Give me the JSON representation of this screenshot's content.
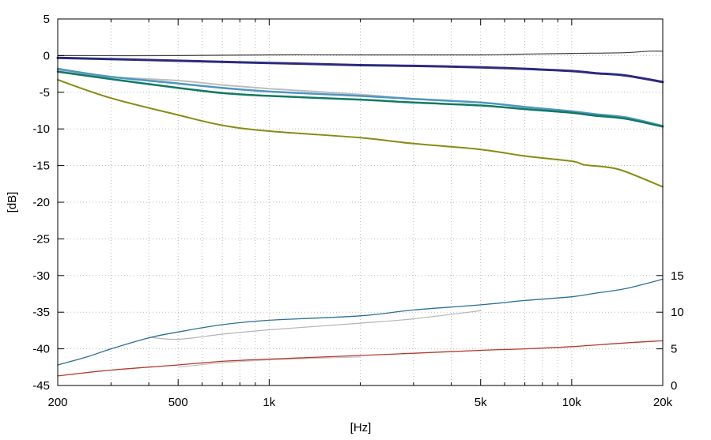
{
  "chart_data": {
    "type": "line",
    "title": "",
    "xlabel": "[Hz]",
    "ylabel": "[dB]",
    "xscale": "log",
    "xlim": [
      200,
      20000
    ],
    "ylim": [
      -45,
      5
    ],
    "y2lim": [
      0,
      50
    ],
    "grid": true,
    "x_major_ticks": [
      200,
      500,
      1000,
      5000,
      10000,
      20000
    ],
    "x_tick_labels": [
      "200",
      "500",
      "1k",
      "5k",
      "10k",
      "20k"
    ],
    "x_minor_ticks": [
      300,
      400,
      600,
      700,
      800,
      900,
      2000,
      3000,
      4000,
      6000,
      7000,
      8000,
      9000
    ],
    "y_ticks": [
      5,
      0,
      -5,
      -10,
      -15,
      -20,
      -25,
      -30,
      -35,
      -40,
      -45
    ],
    "y_tick_labels": [
      "5",
      "0",
      "-5",
      "-10",
      "-15",
      "-20",
      "-25",
      "-30",
      "-35",
      "-40",
      "-45"
    ],
    "y2_ticks": [
      15,
      10,
      5,
      0
    ],
    "y2_tick_labels": [
      "15",
      "10",
      "5",
      "0"
    ],
    "series": [
      {
        "name": "dark gray (left axis)",
        "color": "#3c3c3c",
        "width": 1.2,
        "axis": "left",
        "x": [
          200,
          500,
          1000,
          2000,
          5000,
          7000,
          10000,
          15000,
          18000,
          20000
        ],
        "y": [
          0.0,
          0.0,
          0.1,
          0.1,
          0.1,
          0.2,
          0.3,
          0.4,
          0.6,
          0.6
        ]
      },
      {
        "name": "navy (left axis)",
        "color": "#2a2a80",
        "width": 3,
        "axis": "left",
        "x": [
          200,
          500,
          1000,
          2000,
          3000,
          5000,
          7000,
          10000,
          12000,
          15000,
          20000
        ],
        "y": [
          -0.3,
          -0.7,
          -1.0,
          -1.3,
          -1.4,
          -1.6,
          -1.8,
          -2.1,
          -2.4,
          -2.7,
          -3.6
        ]
      },
      {
        "name": "light gray (left axis)",
        "color": "#bdbdbd",
        "width": 2,
        "axis": "left",
        "x": [
          200,
          300,
          500,
          700,
          1000,
          2000,
          3000,
          5000,
          7000,
          10000,
          12000,
          15000,
          20000
        ],
        "y": [
          -2.0,
          -2.9,
          -3.4,
          -4.0,
          -4.5,
          -5.3,
          -5.9,
          -6.4,
          -7.0,
          -7.7,
          -8.1,
          -8.4,
          -9.7
        ]
      },
      {
        "name": "steel blue (left axis)",
        "color": "#4f95c0",
        "width": 2.5,
        "axis": "left",
        "x": [
          200,
          300,
          500,
          700,
          1000,
          2000,
          3000,
          5000,
          7000,
          10000,
          12000,
          15000,
          20000
        ],
        "y": [
          -1.8,
          -2.9,
          -3.8,
          -4.4,
          -4.9,
          -5.5,
          -5.9,
          -6.4,
          -7.0,
          -7.6,
          -8.0,
          -8.4,
          -9.6
        ]
      },
      {
        "name": "teal (left axis)",
        "color": "#0f7a62",
        "width": 2.5,
        "axis": "left",
        "x": [
          200,
          300,
          500,
          700,
          1000,
          2000,
          3000,
          5000,
          7000,
          10000,
          12000,
          15000,
          20000
        ],
        "y": [
          -2.2,
          -3.2,
          -4.4,
          -5.1,
          -5.5,
          -6.0,
          -6.4,
          -6.8,
          -7.3,
          -7.8,
          -8.2,
          -8.6,
          -9.7
        ]
      },
      {
        "name": "olive (left axis)",
        "color": "#8a8a12",
        "width": 2,
        "axis": "left",
        "x": [
          200,
          300,
          500,
          700,
          1000,
          2000,
          3000,
          5000,
          7000,
          10000,
          11000,
          13000,
          15000,
          20000
        ],
        "y": [
          -3.3,
          -5.8,
          -8.1,
          -9.5,
          -10.3,
          -11.2,
          -12.0,
          -12.8,
          -13.7,
          -14.4,
          -14.9,
          -15.2,
          -15.8,
          -17.9
        ]
      },
      {
        "name": "light gray secondary (right axis)",
        "color": "#b4b4b4",
        "width": 1.2,
        "axis": "right",
        "x": [
          400,
          500,
          700,
          1000,
          2000,
          3000,
          5000
        ],
        "y": [
          6.6,
          6.3,
          7.0,
          7.6,
          8.5,
          9.1,
          10.2
        ]
      },
      {
        "name": "light gray low (right axis)",
        "color": "#c0c0c0",
        "width": 1.2,
        "axis": "right",
        "x": [
          500,
          700,
          1000,
          2000
        ],
        "y": [
          2.5,
          3.1,
          3.5,
          3.9
        ]
      },
      {
        "name": "blue (right axis)",
        "color": "#2a6f98",
        "width": 1.3,
        "axis": "right",
        "x": [
          200,
          250,
          300,
          400,
          500,
          700,
          1000,
          2000,
          3000,
          5000,
          7000,
          10000,
          12000,
          15000,
          20000
        ],
        "y": [
          2.8,
          3.9,
          5.0,
          6.5,
          7.3,
          8.3,
          8.9,
          9.5,
          10.3,
          11.0,
          11.6,
          12.1,
          12.6,
          13.2,
          14.5
        ]
      },
      {
        "name": "red (right axis)",
        "color": "#b53a2a",
        "width": 1.3,
        "axis": "right",
        "x": [
          200,
          300,
          500,
          700,
          1000,
          2000,
          3000,
          5000,
          7000,
          10000,
          15000,
          20000
        ],
        "y": [
          1.3,
          2.1,
          2.8,
          3.3,
          3.6,
          4.1,
          4.4,
          4.8,
          5.0,
          5.3,
          5.8,
          6.1
        ]
      }
    ]
  }
}
